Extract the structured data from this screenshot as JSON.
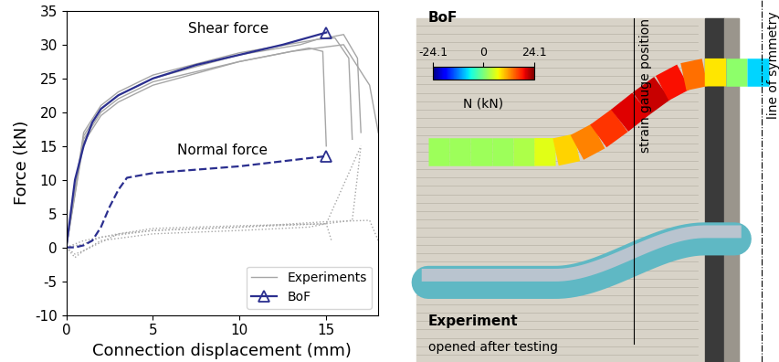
{
  "chart_data": {
    "type": "line",
    "x_label": "Connection displacement (mm)",
    "y_label": "Force (kN)",
    "xlim": [
      0,
      18
    ],
    "xticks": [
      0,
      5,
      10,
      15
    ],
    "ylim": [
      -10,
      35
    ],
    "yticks": [
      -10,
      -5,
      0,
      5,
      10,
      15,
      20,
      25,
      30,
      35
    ],
    "grid": false,
    "legend": "lower right",
    "annotations": [
      "Shear force",
      "Normal force"
    ],
    "series": [
      {
        "name": "Experiments",
        "color": "#a6a6a6",
        "line_style": "solid",
        "x": [
          0,
          1,
          2,
          3,
          5,
          10,
          14,
          14.8,
          15
        ],
        "values": [
          0,
          16,
          20,
          22,
          24.5,
          27.5,
          29.5,
          29,
          15
        ]
      },
      {
        "color": "#a6a6a6",
        "line_style": "solid",
        "x": [
          0,
          1,
          2,
          3,
          5,
          10,
          13.5,
          14.5,
          15.5,
          16.3,
          16.5
        ],
        "values": [
          0,
          16.5,
          20.5,
          22.5,
          25,
          28.5,
          30,
          30.8,
          31,
          28,
          16
        ]
      },
      {
        "color": "#a6a6a6",
        "line_style": "solid",
        "x": [
          0,
          1,
          2,
          3,
          5,
          10,
          15,
          16,
          16.8,
          17
        ],
        "values": [
          0,
          17,
          21,
          23,
          25.5,
          28.8,
          31,
          31.5,
          28,
          17
        ]
      },
      {
        "color": "#a6a6a6",
        "line_style": "solid",
        "x": [
          0,
          1,
          2,
          3,
          5,
          10,
          13,
          16,
          17.5,
          18
        ],
        "values": [
          0,
          15.5,
          19.5,
          21.5,
          24,
          27.5,
          29,
          30,
          24,
          17
        ]
      },
      {
        "color": "#a6a6a6",
        "line_style": "dotted",
        "x": [
          0,
          0.5,
          1,
          2,
          5,
          10,
          14,
          15,
          15.3
        ],
        "values": [
          0,
          -1,
          -0.5,
          1,
          2,
          2.5,
          3,
          3.5,
          1
        ]
      },
      {
        "color": "#a6a6a6",
        "line_style": "dotted",
        "x": [
          0,
          1,
          2,
          5,
          10,
          15,
          16.5,
          17
        ],
        "values": [
          0,
          0.5,
          1.5,
          2.5,
          3,
          3.5,
          4,
          15
        ]
      },
      {
        "color": "#a6a6a6",
        "line_style": "dotted",
        "x": [
          0,
          1,
          3,
          5,
          10,
          15,
          17.5,
          18
        ],
        "values": [
          0,
          1,
          2,
          2.5,
          3,
          3.8,
          4,
          1
        ]
      },
      {
        "color": "#a6a6a6",
        "line_style": "dotted",
        "x": [
          0,
          0.5,
          1,
          3,
          5,
          10,
          15,
          17
        ],
        "values": [
          0,
          -1.5,
          -0.5,
          2,
          2.8,
          3.2,
          3.5,
          15
        ]
      },
      {
        "name": "BoF",
        "color": "#2b2f8f",
        "line_style": "solid",
        "marker": "^",
        "x": [
          0,
          0.5,
          1,
          1.5,
          2,
          3,
          5,
          7.5,
          10,
          12.5,
          15
        ],
        "values": [
          0,
          10,
          15,
          18.5,
          20.5,
          22.5,
          25,
          27,
          28.5,
          30,
          31.8
        ]
      },
      {
        "color": "#2b2f8f",
        "line_style": "dashed",
        "marker": "^",
        "x": [
          0,
          0.5,
          1,
          1.5,
          2,
          2.5,
          3,
          3.5,
          5,
          10,
          15
        ],
        "values": [
          0,
          0,
          0.3,
          1,
          3,
          6,
          8.5,
          10.3,
          11,
          12,
          13.5
        ]
      }
    ]
  },
  "panel": {
    "model_label": "BoF",
    "colorbar": {
      "range": [
        -24.1,
        24.1
      ],
      "ticks": [
        -24.1,
        0,
        24.1
      ],
      "label": "N (kN)"
    },
    "beam_normal_force": [
      2,
      2,
      2,
      2,
      3,
      6,
      9,
      13,
      17,
      20,
      21,
      19,
      14,
      8,
      1,
      -8
    ],
    "strain_gauge_label": "strain gauge position",
    "symmetry_label": "line of symmetry",
    "experiment_label": "Experiment",
    "experiment_note": "opened after testing"
  }
}
